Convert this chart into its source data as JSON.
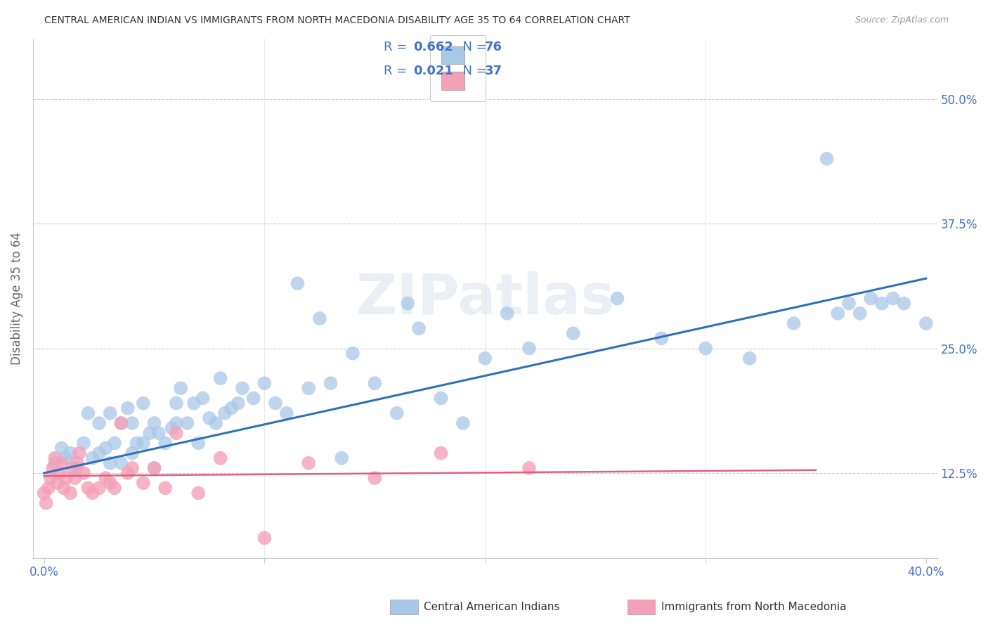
{
  "title": "CENTRAL AMERICAN INDIAN VS IMMIGRANTS FROM NORTH MACEDONIA DISABILITY AGE 35 TO 64 CORRELATION CHART",
  "source": "Source: ZipAtlas.com",
  "ylabel": "Disability Age 35 to 64",
  "x_min": 0.0,
  "x_max": 0.4,
  "y_ticks": [
    0.125,
    0.25,
    0.375,
    0.5
  ],
  "y_tick_labels": [
    "12.5%",
    "25.0%",
    "37.5%",
    "50.0%"
  ],
  "blue_R": 0.662,
  "blue_N": 76,
  "pink_R": 0.021,
  "pink_N": 37,
  "blue_color": "#a8c8e8",
  "pink_color": "#f4a0b8",
  "blue_line_color": "#3070b8",
  "pink_line_color": "#e06080",
  "text_color": "#4472c4",
  "legend_label_blue": "Central American Indians",
  "legend_label_pink": "Immigrants from North Macedonia",
  "watermark": "ZIPatlas",
  "blue_scatter_x": [
    0.005,
    0.008,
    0.01,
    0.012,
    0.015,
    0.018,
    0.02,
    0.022,
    0.025,
    0.025,
    0.028,
    0.03,
    0.03,
    0.032,
    0.035,
    0.035,
    0.038,
    0.04,
    0.04,
    0.042,
    0.045,
    0.045,
    0.048,
    0.05,
    0.05,
    0.052,
    0.055,
    0.058,
    0.06,
    0.06,
    0.062,
    0.065,
    0.068,
    0.07,
    0.072,
    0.075,
    0.078,
    0.08,
    0.082,
    0.085,
    0.088,
    0.09,
    0.095,
    0.1,
    0.105,
    0.11,
    0.115,
    0.12,
    0.125,
    0.13,
    0.135,
    0.14,
    0.15,
    0.16,
    0.165,
    0.17,
    0.18,
    0.19,
    0.2,
    0.21,
    0.22,
    0.24,
    0.26,
    0.28,
    0.3,
    0.32,
    0.34,
    0.355,
    0.36,
    0.365,
    0.37,
    0.375,
    0.38,
    0.385,
    0.39,
    0.4
  ],
  "blue_scatter_y": [
    0.135,
    0.15,
    0.14,
    0.145,
    0.13,
    0.155,
    0.185,
    0.14,
    0.145,
    0.175,
    0.15,
    0.135,
    0.185,
    0.155,
    0.135,
    0.175,
    0.19,
    0.145,
    0.175,
    0.155,
    0.155,
    0.195,
    0.165,
    0.13,
    0.175,
    0.165,
    0.155,
    0.17,
    0.195,
    0.175,
    0.21,
    0.175,
    0.195,
    0.155,
    0.2,
    0.18,
    0.175,
    0.22,
    0.185,
    0.19,
    0.195,
    0.21,
    0.2,
    0.215,
    0.195,
    0.185,
    0.315,
    0.21,
    0.28,
    0.215,
    0.14,
    0.245,
    0.215,
    0.185,
    0.295,
    0.27,
    0.2,
    0.175,
    0.24,
    0.285,
    0.25,
    0.265,
    0.3,
    0.26,
    0.25,
    0.24,
    0.275,
    0.44,
    0.285,
    0.295,
    0.285,
    0.3,
    0.295,
    0.3,
    0.295,
    0.275
  ],
  "pink_scatter_x": [
    0.0,
    0.001,
    0.002,
    0.003,
    0.004,
    0.005,
    0.006,
    0.007,
    0.008,
    0.009,
    0.01,
    0.012,
    0.013,
    0.014,
    0.015,
    0.016,
    0.018,
    0.02,
    0.022,
    0.025,
    0.028,
    0.03,
    0.032,
    0.035,
    0.038,
    0.04,
    0.045,
    0.05,
    0.055,
    0.06,
    0.07,
    0.08,
    0.1,
    0.12,
    0.15,
    0.18,
    0.22
  ],
  "pink_scatter_y": [
    0.105,
    0.095,
    0.11,
    0.12,
    0.13,
    0.14,
    0.115,
    0.125,
    0.135,
    0.11,
    0.12,
    0.105,
    0.13,
    0.12,
    0.135,
    0.145,
    0.125,
    0.11,
    0.105,
    0.11,
    0.12,
    0.115,
    0.11,
    0.175,
    0.125,
    0.13,
    0.115,
    0.13,
    0.11,
    0.165,
    0.105,
    0.14,
    0.06,
    0.135,
    0.12,
    0.145,
    0.13
  ],
  "blue_line_x0": 0.0,
  "blue_line_y0": 0.125,
  "blue_line_x1": 0.4,
  "blue_line_y1": 0.32,
  "pink_line_x0": 0.0,
  "pink_line_y0": 0.122,
  "pink_line_x1": 0.35,
  "pink_line_y1": 0.128
}
